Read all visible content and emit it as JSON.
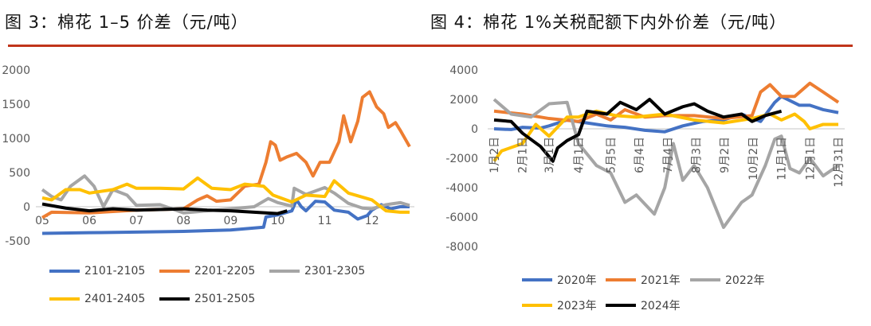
{
  "titles": {
    "left": "图 3：棉花 1–5 价差（元/吨）",
    "right": "图 4：棉花 1%关税配额下内外价差（元/吨）"
  },
  "chart_data": [
    {
      "type": "line",
      "title": "图 3：棉花 1–5 价差（元/吨）",
      "xlabel": "",
      "ylabel": "",
      "ylim": [
        -500,
        2000
      ],
      "yticks": [
        "2000",
        "1500",
        "1000",
        "500",
        "0",
        "-500"
      ],
      "xticks": [
        "05",
        "06",
        "07",
        "08",
        "09",
        "10",
        "11",
        "12"
      ],
      "legend": "bottom",
      "grid": false,
      "series": [
        {
          "name": "2101-2105",
          "color": "#4472c4",
          "points": [
            [
              5,
              -390
            ],
            [
              6,
              -380
            ],
            [
              7,
              -370
            ],
            [
              8,
              -360
            ],
            [
              9,
              -340
            ],
            [
              9.7,
              -300
            ],
            [
              9.75,
              -150
            ],
            [
              10,
              -120
            ],
            [
              10.3,
              -60
            ],
            [
              10.4,
              100
            ],
            [
              10.5,
              0
            ],
            [
              10.6,
              -60
            ],
            [
              10.8,
              80
            ],
            [
              11,
              70
            ],
            [
              11.2,
              -50
            ],
            [
              11.5,
              -80
            ],
            [
              11.7,
              -180
            ],
            [
              11.9,
              -130
            ],
            [
              12,
              -50
            ],
            [
              12.2,
              30
            ],
            [
              12.4,
              -30
            ],
            [
              12.6,
              0
            ],
            [
              12.8,
              0
            ]
          ]
        },
        {
          "name": "2201-2205",
          "color": "#ed7d31",
          "points": [
            [
              5,
              -160
            ],
            [
              5.2,
              -80
            ],
            [
              6,
              -90
            ],
            [
              7,
              -50
            ],
            [
              7.5,
              -40
            ],
            [
              8,
              -30
            ],
            [
              8.3,
              100
            ],
            [
              8.5,
              160
            ],
            [
              8.7,
              80
            ],
            [
              9,
              100
            ],
            [
              9.3,
              300
            ],
            [
              9.6,
              330
            ],
            [
              9.75,
              650
            ],
            [
              9.85,
              950
            ],
            [
              9.95,
              900
            ],
            [
              10.05,
              680
            ],
            [
              10.2,
              730
            ],
            [
              10.4,
              780
            ],
            [
              10.6,
              650
            ],
            [
              10.75,
              450
            ],
            [
              10.9,
              650
            ],
            [
              11.1,
              650
            ],
            [
              11.3,
              950
            ],
            [
              11.4,
              1330
            ],
            [
              11.55,
              950
            ],
            [
              11.7,
              1250
            ],
            [
              11.8,
              1600
            ],
            [
              11.95,
              1680
            ],
            [
              12.1,
              1460
            ],
            [
              12.25,
              1360
            ],
            [
              12.35,
              1160
            ],
            [
              12.5,
              1230
            ],
            [
              12.6,
              1120
            ],
            [
              12.8,
              880
            ]
          ]
        },
        {
          "name": "2301-2305",
          "color": "#a5a5a5",
          "points": [
            [
              5,
              250
            ],
            [
              5.2,
              150
            ],
            [
              5.4,
              100
            ],
            [
              5.6,
              300
            ],
            [
              5.9,
              450
            ],
            [
              6.1,
              300
            ],
            [
              6.3,
              0
            ],
            [
              6.5,
              250
            ],
            [
              6.8,
              170
            ],
            [
              7,
              20
            ],
            [
              7.5,
              30
            ],
            [
              8,
              -90
            ],
            [
              8.5,
              -60
            ],
            [
              9,
              -30
            ],
            [
              9.5,
              0
            ],
            [
              9.8,
              120
            ],
            [
              10,
              60
            ],
            [
              10.3,
              10
            ],
            [
              10.35,
              270
            ],
            [
              10.6,
              180
            ],
            [
              11,
              280
            ],
            [
              11.2,
              200
            ],
            [
              11.5,
              50
            ],
            [
              11.8,
              -20
            ],
            [
              12,
              -30
            ],
            [
              12.3,
              30
            ],
            [
              12.6,
              60
            ],
            [
              12.8,
              20
            ]
          ]
        },
        {
          "name": "2401-2405",
          "color": "#ffc000",
          "points": [
            [
              5,
              130
            ],
            [
              5.2,
              100
            ],
            [
              5.5,
              250
            ],
            [
              5.8,
              250
            ],
            [
              6,
              200
            ],
            [
              6.5,
              250
            ],
            [
              6.8,
              330
            ],
            [
              7,
              270
            ],
            [
              7.5,
              270
            ],
            [
              8,
              260
            ],
            [
              8.3,
              420
            ],
            [
              8.6,
              270
            ],
            [
              9,
              250
            ],
            [
              9.3,
              330
            ],
            [
              9.7,
              300
            ],
            [
              9.9,
              170
            ],
            [
              10.3,
              70
            ],
            [
              10.6,
              170
            ],
            [
              11,
              150
            ],
            [
              11.2,
              380
            ],
            [
              11.5,
              200
            ],
            [
              12,
              100
            ],
            [
              12.3,
              -60
            ],
            [
              12.6,
              -80
            ],
            [
              12.8,
              -80
            ]
          ]
        },
        {
          "name": "2501-2505",
          "color": "#000000",
          "points": [
            [
              5,
              40
            ],
            [
              5.5,
              -20
            ],
            [
              6,
              -60
            ],
            [
              6.5,
              -30
            ],
            [
              7,
              -50
            ],
            [
              7.5,
              -40
            ],
            [
              8,
              -30
            ],
            [
              8.5,
              -50
            ],
            [
              9,
              -60
            ],
            [
              9.5,
              -80
            ],
            [
              10,
              -100
            ],
            [
              10.2,
              -60
            ]
          ]
        }
      ]
    },
    {
      "type": "line",
      "title": "图 4：棉花 1%关税配额下内外价差（元/吨）",
      "xlabel": "",
      "ylabel": "",
      "ylim": [
        -8000,
        4000
      ],
      "yticks": [
        "4000",
        "2000",
        "0",
        "-2000",
        "-4000",
        "-6000",
        "-8000"
      ],
      "xticks": [
        "1月2日",
        "2月1日",
        "3月1日",
        "4月1日",
        "5月5日",
        "6月4日",
        "7月4日",
        "8月3日",
        "9月2日",
        "10月2日",
        "11月1日",
        "12月1日",
        "12月31日"
      ],
      "xtick_dates": [
        "01-02",
        "02-01",
        "03-01",
        "04-01",
        "05-05",
        "06-04",
        "07-04",
        "08-03",
        "09-02",
        "10-02",
        "11-01",
        "12-01",
        "12-31"
      ],
      "legend": "bottom",
      "grid": false,
      "series": [
        {
          "name": "2020年",
          "color": "#4472c4",
          "points": [
            [
              "01-02",
              0
            ],
            [
              "01-20",
              -50
            ],
            [
              "02-01",
              100
            ],
            [
              "02-20",
              50
            ],
            [
              "03-01",
              200
            ],
            [
              "03-20",
              600
            ],
            [
              "04-10",
              400
            ],
            [
              "05-01",
              200
            ],
            [
              "05-20",
              100
            ],
            [
              "06-10",
              -100
            ],
            [
              "07-01",
              -200
            ],
            [
              "07-20",
              200
            ],
            [
              "08-10",
              500
            ],
            [
              "09-01",
              600
            ],
            [
              "09-20",
              1000
            ],
            [
              "10-10",
              500
            ],
            [
              "10-25",
              1800
            ],
            [
              "11-01",
              2200
            ],
            [
              "11-20",
              1600
            ],
            [
              "12-01",
              1600
            ],
            [
              "12-15",
              1300
            ],
            [
              "12-31",
              1100
            ]
          ]
        },
        {
          "name": "2021年",
          "color": "#ed7d31",
          "points": [
            [
              "01-02",
              1200
            ],
            [
              "02-01",
              1000
            ],
            [
              "03-01",
              700
            ],
            [
              "04-01",
              500
            ],
            [
              "04-20",
              1000
            ],
            [
              "05-05",
              600
            ],
            [
              "05-20",
              1300
            ],
            [
              "06-10",
              800
            ],
            [
              "07-01",
              900
            ],
            [
              "08-01",
              900
            ],
            [
              "09-01",
              700
            ],
            [
              "10-01",
              900
            ],
            [
              "10-10",
              2500
            ],
            [
              "10-20",
              3000
            ],
            [
              "11-01",
              2200
            ],
            [
              "11-15",
              2200
            ],
            [
              "12-01",
              3100
            ],
            [
              "12-15",
              2500
            ],
            [
              "12-31",
              1800
            ]
          ]
        },
        {
          "name": "2022年",
          "color": "#a5a5a5",
          "points": [
            [
              "01-02",
              2000
            ],
            [
              "01-20",
              1000
            ],
            [
              "02-10",
              800
            ],
            [
              "03-01",
              1700
            ],
            [
              "03-20",
              1800
            ],
            [
              "04-01",
              -1000
            ],
            [
              "04-20",
              -2500
            ],
            [
              "05-05",
              -3000
            ],
            [
              "05-20",
              -5000
            ],
            [
              "06-01",
              -4500
            ],
            [
              "06-20",
              -5800
            ],
            [
              "07-01",
              -4000
            ],
            [
              "07-10",
              -1000
            ],
            [
              "07-20",
              -3500
            ],
            [
              "08-01",
              -2500
            ],
            [
              "08-15",
              -4000
            ],
            [
              "09-01",
              -6700
            ],
            [
              "09-20",
              -5000
            ],
            [
              "10-01",
              -4500
            ],
            [
              "10-15",
              -2500
            ],
            [
              "10-25",
              -700
            ],
            [
              "11-01",
              -500
            ],
            [
              "11-10",
              -2700
            ],
            [
              "11-20",
              -3000
            ],
            [
              "12-01",
              -2000
            ],
            [
              "12-15",
              -3200
            ],
            [
              "12-31",
              -2500
            ]
          ]
        },
        {
          "name": "2023年",
          "color": "#ffc000",
          "points": [
            [
              "01-02",
              -2200
            ],
            [
              "01-10",
              -1500
            ],
            [
              "02-01",
              -1000
            ],
            [
              "02-15",
              300
            ],
            [
              "03-01",
              -500
            ],
            [
              "03-20",
              800
            ],
            [
              "04-01",
              800
            ],
            [
              "04-20",
              1200
            ],
            [
              "05-10",
              900
            ],
            [
              "06-01",
              800
            ],
            [
              "07-01",
              1000
            ],
            [
              "08-01",
              600
            ],
            [
              "09-01",
              400
            ],
            [
              "10-01",
              700
            ],
            [
              "10-20",
              1000
            ],
            [
              "11-01",
              600
            ],
            [
              "11-15",
              1000
            ],
            [
              "11-25",
              500
            ],
            [
              "12-01",
              0
            ],
            [
              "12-15",
              300
            ],
            [
              "12-31",
              300
            ]
          ]
        },
        {
          "name": "2024年",
          "color": "#000000",
          "points": [
            [
              "01-02",
              600
            ],
            [
              "01-20",
              500
            ],
            [
              "02-01",
              -300
            ],
            [
              "02-20",
              -1200
            ],
            [
              "03-05",
              -2200
            ],
            [
              "03-10",
              -1300
            ],
            [
              "03-20",
              -800
            ],
            [
              "04-01",
              -400
            ],
            [
              "04-10",
              1200
            ],
            [
              "05-01",
              1000
            ],
            [
              "05-15",
              1800
            ],
            [
              "06-01",
              1300
            ],
            [
              "06-15",
              2000
            ],
            [
              "07-01",
              1000
            ],
            [
              "07-20",
              1500
            ],
            [
              "08-01",
              1700
            ],
            [
              "08-15",
              1200
            ],
            [
              "09-01",
              800
            ],
            [
              "09-20",
              1000
            ],
            [
              "10-01",
              500
            ],
            [
              "10-15",
              900
            ],
            [
              "11-01",
              1200
            ]
          ]
        }
      ]
    }
  ]
}
